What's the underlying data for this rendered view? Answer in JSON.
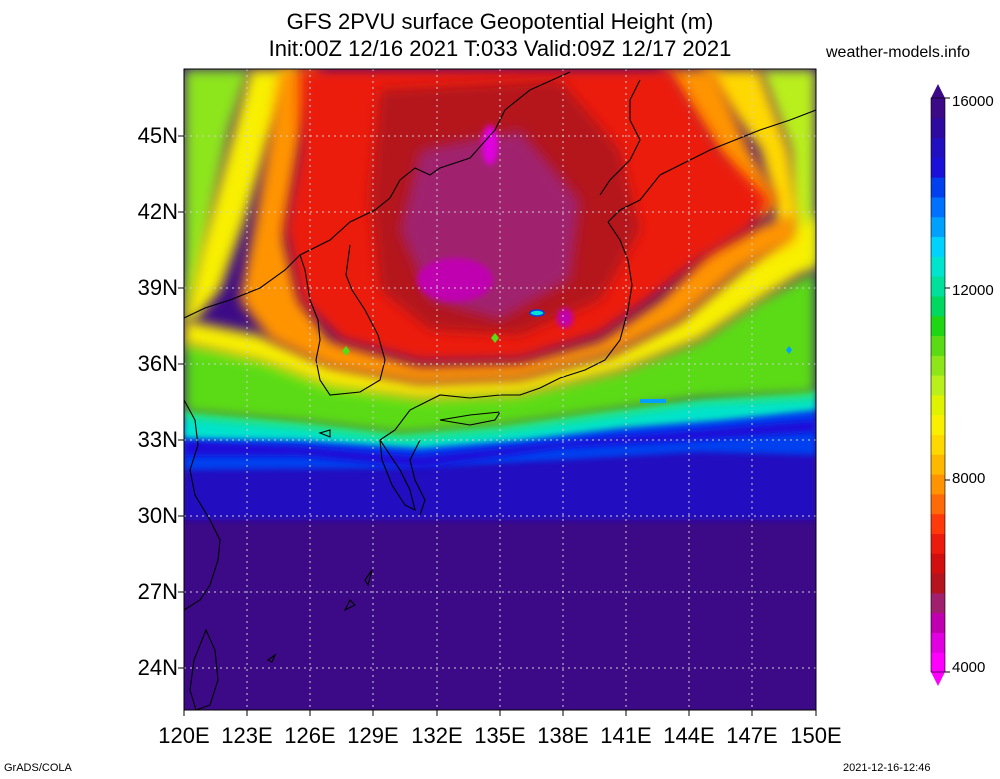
{
  "title": {
    "line1": "GFS 2PVU surface Geopotential Height (m)",
    "line2": "Init:00Z 12/16 2021 T:033 Valid:09Z 12/17 2021"
  },
  "site": "weather-models.info",
  "footer": {
    "left": "GrADS/COLA",
    "right": "2021-12-16-12:46"
  },
  "lat_labels": [
    "45N",
    "42N",
    "39N",
    "36N",
    "33N",
    "30N",
    "27N",
    "24N"
  ],
  "lon_labels": [
    "120E",
    "123E",
    "126E",
    "129E",
    "132E",
    "135E",
    "138E",
    "141E",
    "144E",
    "147E",
    "150E"
  ],
  "colorbar": {
    "labels": [
      "16000",
      "12000",
      "8000",
      "4000"
    ],
    "colors": [
      "#ff00ff",
      "#e000e0",
      "#c000b0",
      "#a0206e",
      "#b4141e",
      "#d10f0f",
      "#ec1c0c",
      "#ff3a0a",
      "#ff6a08",
      "#ff9400",
      "#ffb800",
      "#ffd800",
      "#f8f000",
      "#dff200",
      "#b9ef1a",
      "#8de51a",
      "#5adb14",
      "#1ed614",
      "#00d860",
      "#00e09a",
      "#00e3cc",
      "#00d2ff",
      "#00a0ff",
      "#0070ff",
      "#0040ee",
      "#1a10d8",
      "#2010c0",
      "#2f0a9e",
      "#3c0a86"
    ]
  },
  "map_colors": {
    "purple": "#3c0a86",
    "blue_dark": "#1a10d8",
    "blue": "#0040ee",
    "cyan": "#00e3cc",
    "green": "#5adb14",
    "yellow_green": "#b9ef1a",
    "yellow": "#f8f000",
    "orange": "#ff9400",
    "red": "#ec1c0c",
    "dark_red": "#b4141e",
    "maroon": "#a0206e",
    "magenta": "#c000b0"
  }
}
